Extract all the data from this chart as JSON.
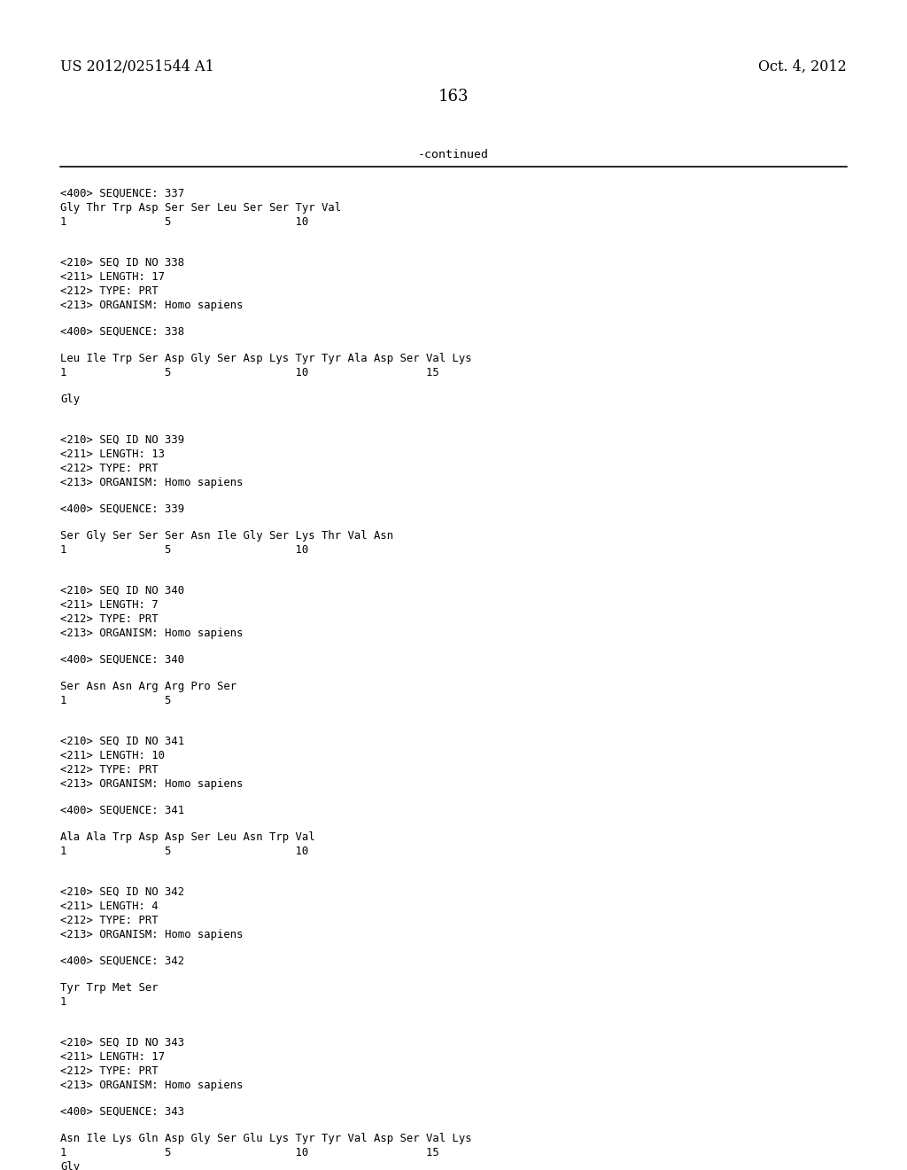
{
  "header_left": "US 2012/0251544 A1",
  "header_right": "Oct. 4, 2012",
  "page_number": "163",
  "continued_text": "-continued",
  "background_color": "#ffffff",
  "text_color": "#000000",
  "content_lines": [
    {
      "text": "<400> SEQUENCE: 337",
      "blank_before": 1
    },
    {
      "text": "Gly Thr Trp Asp Ser Ser Leu Ser Ser Tyr Val",
      "blank_before": 1
    },
    {
      "text": "1               5                   10",
      "blank_before": 0
    },
    {
      "text": "",
      "blank_before": 0
    },
    {
      "text": "",
      "blank_before": 0
    },
    {
      "text": "<210> SEQ ID NO 338",
      "blank_before": 0
    },
    {
      "text": "<211> LENGTH: 17",
      "blank_before": 0
    },
    {
      "text": "<212> TYPE: PRT",
      "blank_before": 0
    },
    {
      "text": "<213> ORGANISM: Homo sapiens",
      "blank_before": 0
    },
    {
      "text": "",
      "blank_before": 0
    },
    {
      "text": "<400> SEQUENCE: 338",
      "blank_before": 0
    },
    {
      "text": "",
      "blank_before": 0
    },
    {
      "text": "Leu Ile Trp Ser Asp Gly Ser Asp Lys Tyr Tyr Ala Asp Ser Val Lys",
      "blank_before": 0
    },
    {
      "text": "1               5                   10                  15",
      "blank_before": 0
    },
    {
      "text": "",
      "blank_before": 0
    },
    {
      "text": "Gly",
      "blank_before": 0
    },
    {
      "text": "",
      "blank_before": 0
    },
    {
      "text": "",
      "blank_before": 0
    },
    {
      "text": "<210> SEQ ID NO 339",
      "blank_before": 0
    },
    {
      "text": "<211> LENGTH: 13",
      "blank_before": 0
    },
    {
      "text": "<212> TYPE: PRT",
      "blank_before": 0
    },
    {
      "text": "<213> ORGANISM: Homo sapiens",
      "blank_before": 0
    },
    {
      "text": "",
      "blank_before": 0
    },
    {
      "text": "<400> SEQUENCE: 339",
      "blank_before": 0
    },
    {
      "text": "",
      "blank_before": 0
    },
    {
      "text": "Ser Gly Ser Ser Ser Asn Ile Gly Ser Lys Thr Val Asn",
      "blank_before": 0
    },
    {
      "text": "1               5                   10",
      "blank_before": 0
    },
    {
      "text": "",
      "blank_before": 0
    },
    {
      "text": "",
      "blank_before": 0
    },
    {
      "text": "<210> SEQ ID NO 340",
      "blank_before": 0
    },
    {
      "text": "<211> LENGTH: 7",
      "blank_before": 0
    },
    {
      "text": "<212> TYPE: PRT",
      "blank_before": 0
    },
    {
      "text": "<213> ORGANISM: Homo sapiens",
      "blank_before": 0
    },
    {
      "text": "",
      "blank_before": 0
    },
    {
      "text": "<400> SEQUENCE: 340",
      "blank_before": 0
    },
    {
      "text": "",
      "blank_before": 0
    },
    {
      "text": "Ser Asn Asn Arg Arg Pro Ser",
      "blank_before": 0
    },
    {
      "text": "1               5",
      "blank_before": 0
    },
    {
      "text": "",
      "blank_before": 0
    },
    {
      "text": "",
      "blank_before": 0
    },
    {
      "text": "<210> SEQ ID NO 341",
      "blank_before": 0
    },
    {
      "text": "<211> LENGTH: 10",
      "blank_before": 0
    },
    {
      "text": "<212> TYPE: PRT",
      "blank_before": 0
    },
    {
      "text": "<213> ORGANISM: Homo sapiens",
      "blank_before": 0
    },
    {
      "text": "",
      "blank_before": 0
    },
    {
      "text": "<400> SEQUENCE: 341",
      "blank_before": 0
    },
    {
      "text": "",
      "blank_before": 0
    },
    {
      "text": "Ala Ala Trp Asp Asp Ser Leu Asn Trp Val",
      "blank_before": 0
    },
    {
      "text": "1               5                   10",
      "blank_before": 0
    },
    {
      "text": "",
      "blank_before": 0
    },
    {
      "text": "",
      "blank_before": 0
    },
    {
      "text": "<210> SEQ ID NO 342",
      "blank_before": 0
    },
    {
      "text": "<211> LENGTH: 4",
      "blank_before": 0
    },
    {
      "text": "<212> TYPE: PRT",
      "blank_before": 0
    },
    {
      "text": "<213> ORGANISM: Homo sapiens",
      "blank_before": 0
    },
    {
      "text": "",
      "blank_before": 0
    },
    {
      "text": "<400> SEQUENCE: 342",
      "blank_before": 0
    },
    {
      "text": "",
      "blank_before": 0
    },
    {
      "text": "Tyr Trp Met Ser",
      "blank_before": 0
    },
    {
      "text": "1",
      "blank_before": 0
    },
    {
      "text": "",
      "blank_before": 0
    },
    {
      "text": "",
      "blank_before": 0
    },
    {
      "text": "<210> SEQ ID NO 343",
      "blank_before": 0
    },
    {
      "text": "<211> LENGTH: 17",
      "blank_before": 0
    },
    {
      "text": "<212> TYPE: PRT",
      "blank_before": 0
    },
    {
      "text": "<213> ORGANISM: Homo sapiens",
      "blank_before": 0
    },
    {
      "text": "",
      "blank_before": 0
    },
    {
      "text": "<400> SEQUENCE: 343",
      "blank_before": 0
    },
    {
      "text": "",
      "blank_before": 0
    },
    {
      "text": "Asn Ile Lys Gln Asp Gly Ser Glu Lys Tyr Tyr Val Asp Ser Val Lys",
      "blank_before": 0
    },
    {
      "text": "1               5                   10                  15",
      "blank_before": 0
    },
    {
      "text": "",
      "blank_before": 0
    },
    {
      "text": "Gly",
      "blank_before": 0
    }
  ]
}
